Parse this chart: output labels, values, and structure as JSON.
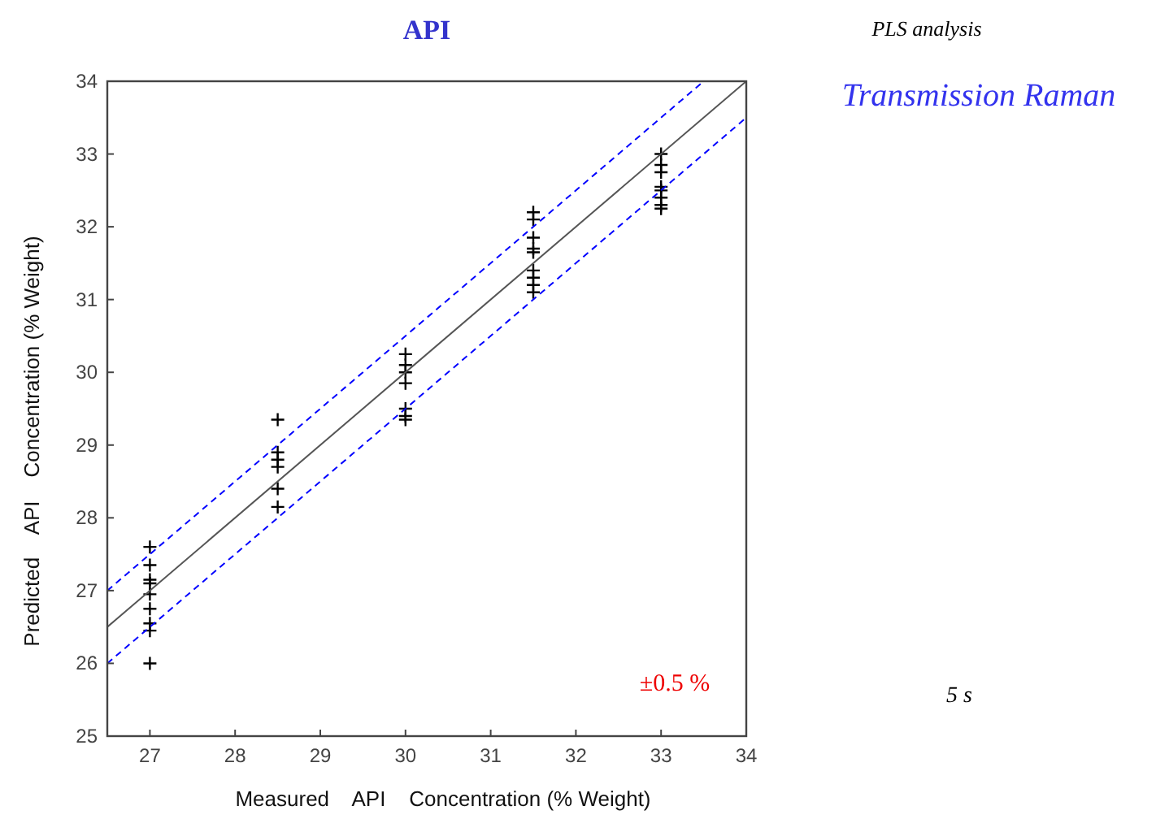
{
  "chart_data": {
    "type": "scatter",
    "title": "API",
    "xlabel": "Measured    API    Concentration (% Weight)",
    "ylabel": "Predicted    API    Concentration (% Weight)",
    "xlim": [
      26.5,
      34
    ],
    "ylim": [
      25,
      34
    ],
    "xticks": [
      27,
      28,
      29,
      30,
      31,
      32,
      33,
      34
    ],
    "yticks": [
      25,
      26,
      27,
      28,
      29,
      30,
      31,
      32,
      33,
      34
    ],
    "grid": false,
    "annotations": [
      "PLS analysis",
      "Transmission Raman",
      "±0.5 %",
      "5 s"
    ],
    "series": [
      {
        "type": "scatter",
        "color": "#000000",
        "marker": "cross",
        "x": [
          27,
          27,
          27,
          27,
          27,
          27,
          27,
          27,
          27,
          28.5,
          28.5,
          28.5,
          28.5,
          28.5,
          28.5,
          30,
          30,
          30,
          30,
          30,
          30,
          30,
          31.5,
          31.5,
          31.5,
          31.5,
          31.5,
          31.5,
          31.5,
          31.5,
          31.5,
          33,
          33,
          33,
          33,
          33,
          33,
          33,
          33
        ],
        "values": [
          27.6,
          27.35,
          27.15,
          27.1,
          26.95,
          26.75,
          26.55,
          26.45,
          26.0,
          29.35,
          28.9,
          28.8,
          28.7,
          28.4,
          28.15,
          30.25,
          30.1,
          30.0,
          29.85,
          29.5,
          29.4,
          29.35,
          32.2,
          32.1,
          31.85,
          31.7,
          31.65,
          31.4,
          31.3,
          31.2,
          31.1,
          33.0,
          32.85,
          32.75,
          32.55,
          32.5,
          32.4,
          32.3,
          32.25
        ]
      },
      {
        "type": "line",
        "color": "#555555",
        "line_style": "solid",
        "marker": "none",
        "x": [
          26.5,
          34
        ],
        "values": [
          26.5,
          34
        ]
      },
      {
        "type": "line",
        "color": "#0000ff",
        "line_style": "dashed",
        "marker": "none",
        "x": [
          26.5,
          33.5
        ],
        "values": [
          27,
          34
        ]
      },
      {
        "type": "line",
        "color": "#0000ff",
        "line_style": "dashed",
        "marker": "none",
        "x": [
          26.5,
          34
        ],
        "values": [
          26,
          33.5
        ]
      }
    ]
  }
}
